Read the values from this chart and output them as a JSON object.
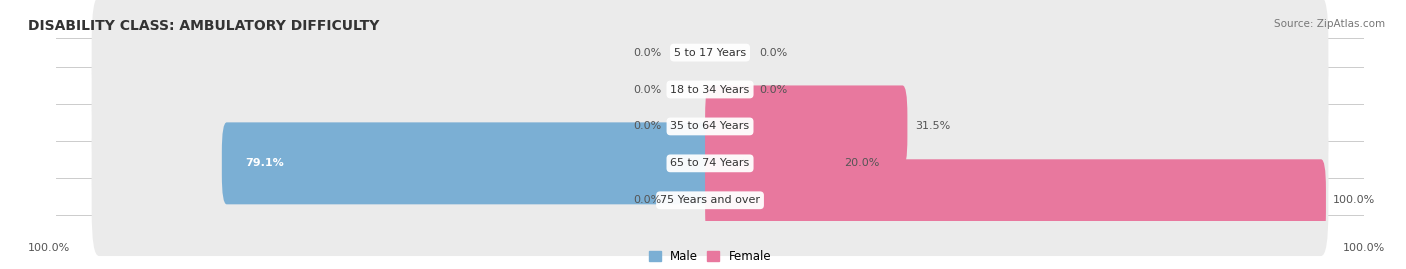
{
  "title": "DISABILITY CLASS: AMBULATORY DIFFICULTY",
  "source": "Source: ZipAtlas.com",
  "categories": [
    "5 to 17 Years",
    "18 to 34 Years",
    "35 to 64 Years",
    "65 to 74 Years",
    "75 Years and over"
  ],
  "male_values": [
    0.0,
    0.0,
    0.0,
    79.1,
    0.0
  ],
  "female_values": [
    0.0,
    0.0,
    31.5,
    20.0,
    100.0
  ],
  "male_color": "#7bafd4",
  "female_color": "#e8789e",
  "bar_bg_color": "#ebebeb",
  "bar_height": 0.62,
  "max_value": 100.0,
  "title_fontsize": 10,
  "label_fontsize": 8,
  "category_fontsize": 8,
  "legend_fontsize": 8.5,
  "background_color": "#ffffff",
  "axis_label_left": "100.0%",
  "axis_label_right": "100.0%",
  "separator_color": "#cccccc"
}
